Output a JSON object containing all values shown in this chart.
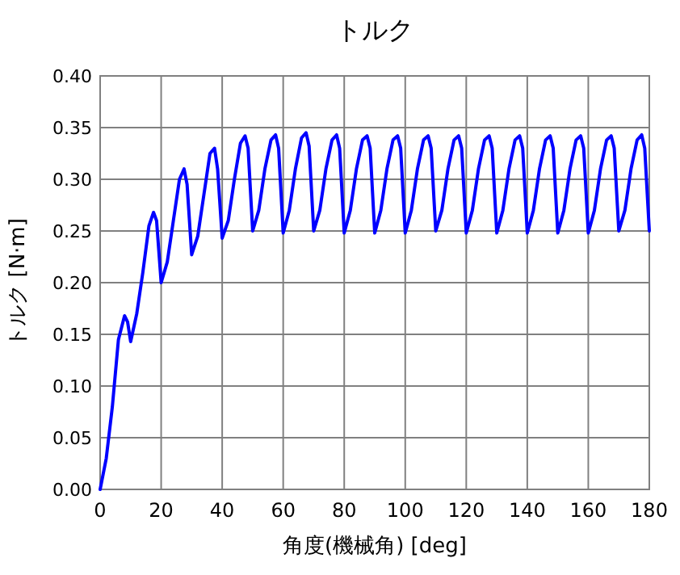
{
  "chart_data": {
    "type": "line",
    "title": "トルク",
    "xlabel": "角度(機械角) [deg]",
    "ylabel": "トルク [N·m]",
    "xlim": [
      0,
      180
    ],
    "xticks": [
      0,
      20,
      40,
      60,
      80,
      100,
      120,
      140,
      160,
      180
    ],
    "ylim": [
      0,
      0.4
    ],
    "yticks": [
      {
        "value": 0,
        "label": "0.00"
      },
      0.05,
      {
        "value": 0.1,
        "label": "0.10"
      },
      0.15,
      {
        "value": 0.2,
        "label": "0.20"
      },
      0.25,
      {
        "value": 0.3,
        "label": "0.30"
      },
      0.35,
      {
        "value": 0.4,
        "label": "0.40"
      }
    ],
    "grid": true,
    "marker": "none",
    "line_style": "solid",
    "series": [
      {
        "color": "#0000ff",
        "x": [
          0,
          2,
          4,
          6,
          8,
          9,
          10,
          12,
          14,
          16,
          17.5,
          18.5,
          20,
          22,
          24,
          26,
          27.5,
          28.5,
          30,
          32,
          34,
          36,
          37.5,
          38.5,
          40,
          42,
          44,
          46,
          47.5,
          48.5,
          50,
          52,
          54,
          56,
          57.5,
          58.5,
          60,
          62,
          64,
          66,
          67.5,
          68.5,
          70,
          72,
          74,
          76,
          77.5,
          78.5,
          80,
          82,
          84,
          86,
          87.5,
          88.5,
          90,
          92,
          94,
          96,
          97.5,
          98.5,
          100,
          102,
          104,
          106,
          107.5,
          108.5,
          110,
          112,
          114,
          116,
          117.5,
          118.5,
          120,
          122,
          124,
          126,
          127.5,
          128.5,
          130,
          132,
          134,
          136,
          137.5,
          138.5,
          140,
          142,
          144,
          146,
          147.5,
          148.5,
          150,
          152,
          154,
          156,
          157.5,
          158.5,
          160,
          162,
          164,
          166,
          167.5,
          168.5,
          170,
          172,
          174,
          176,
          177.5,
          178.5,
          180
        ],
        "values": [
          0,
          0.03,
          0.08,
          0.145,
          0.168,
          0.162,
          0.143,
          0.17,
          0.21,
          0.255,
          0.268,
          0.26,
          0.2,
          0.22,
          0.26,
          0.3,
          0.31,
          0.295,
          0.227,
          0.245,
          0.285,
          0.325,
          0.33,
          0.31,
          0.243,
          0.26,
          0.3,
          0.335,
          0.342,
          0.33,
          0.25,
          0.27,
          0.31,
          0.338,
          0.343,
          0.33,
          0.248,
          0.27,
          0.31,
          0.34,
          0.345,
          0.332,
          0.25,
          0.27,
          0.31,
          0.338,
          0.343,
          0.33,
          0.248,
          0.27,
          0.31,
          0.338,
          0.342,
          0.33,
          0.248,
          0.27,
          0.31,
          0.338,
          0.342,
          0.33,
          0.248,
          0.27,
          0.31,
          0.338,
          0.342,
          0.33,
          0.25,
          0.27,
          0.31,
          0.338,
          0.342,
          0.33,
          0.248,
          0.27,
          0.31,
          0.338,
          0.342,
          0.33,
          0.248,
          0.27,
          0.31,
          0.338,
          0.342,
          0.33,
          0.248,
          0.27,
          0.31,
          0.338,
          0.342,
          0.33,
          0.248,
          0.27,
          0.31,
          0.338,
          0.342,
          0.33,
          0.248,
          0.27,
          0.31,
          0.338,
          0.342,
          0.33,
          0.25,
          0.27,
          0.31,
          0.338,
          0.343,
          0.33,
          0.25
        ]
      }
    ]
  }
}
